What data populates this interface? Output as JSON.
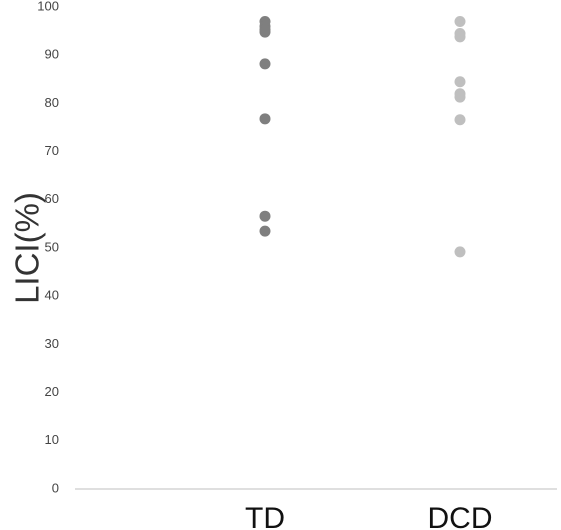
{
  "chart_data": {
    "type": "scatter",
    "title": "",
    "xlabel": "",
    "ylabel": "LICI(%)",
    "categories": [
      "TD",
      "DCD"
    ],
    "ylim": [
      0,
      100
    ],
    "yticks": [
      0,
      10,
      20,
      30,
      40,
      50,
      60,
      70,
      80,
      90,
      100
    ],
    "grid": false,
    "legend": "none",
    "series": [
      {
        "category": "TD",
        "color": "#7f7f7f",
        "values": [
          97,
          96,
          95.3,
          94.8,
          88.2,
          76.8,
          56.6,
          53.5
        ]
      },
      {
        "category": "DCD",
        "color": "#bfbfbf",
        "values": [
          97,
          94.5,
          93.8,
          84.5,
          82,
          81.3,
          76.6,
          49.2
        ]
      }
    ]
  }
}
